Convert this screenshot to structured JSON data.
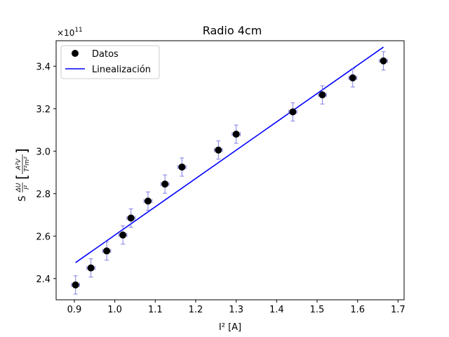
{
  "chart_data": {
    "type": "scatter",
    "title": "Radio 4cm",
    "xlabel": "I² [A]",
    "ylabel_parts": {
      "s": "S",
      "num": "ΔU",
      "den": "l²",
      "unit_num": "A²V",
      "unit_den": "T²m²"
    },
    "y_multiplier": "×10",
    "y_multiplier_exp": "11",
    "xlim": [
      0.855,
      1.715
    ],
    "ylim": [
      2.3,
      3.52
    ],
    "x_ticks": [
      0.9,
      1.0,
      1.1,
      1.2,
      1.3,
      1.4,
      1.5,
      1.6,
      1.7
    ],
    "x_tick_labels": [
      "0.9",
      "1.0",
      "1.1",
      "1.2",
      "1.3",
      "1.4",
      "1.5",
      "1.6",
      "1.7"
    ],
    "y_ticks": [
      2.4,
      2.6,
      2.8,
      3.0,
      3.2,
      3.4
    ],
    "y_tick_labels": [
      "2.4",
      "2.6",
      "2.8",
      "3.0",
      "3.2",
      "3.4"
    ],
    "grid": false,
    "legend_position": "top-left",
    "legend": [
      {
        "name": "Datos",
        "kind": "marker",
        "color": "#000000"
      },
      {
        "name": "Linealización",
        "kind": "line",
        "color": "#0000ff"
      }
    ],
    "series": [
      {
        "name": "Datos",
        "x": [
          0.903,
          0.941,
          0.98,
          1.02,
          1.04,
          1.082,
          1.124,
          1.166,
          1.256,
          1.3,
          1.44,
          1.513,
          1.588,
          1.664
        ],
        "y": [
          2.37,
          2.45,
          2.53,
          2.605,
          2.685,
          2.765,
          2.845,
          2.925,
          3.005,
          3.08,
          3.185,
          3.265,
          3.345,
          3.425
        ],
        "x_err": 0.01,
        "y_err": 0.043,
        "marker_color": "#000000",
        "error_color": "#6a6ae0"
      },
      {
        "name": "Linealización",
        "x": [
          0.903,
          1.664
        ],
        "y": [
          2.475,
          3.49
        ],
        "color": "#0000ff"
      }
    ]
  }
}
